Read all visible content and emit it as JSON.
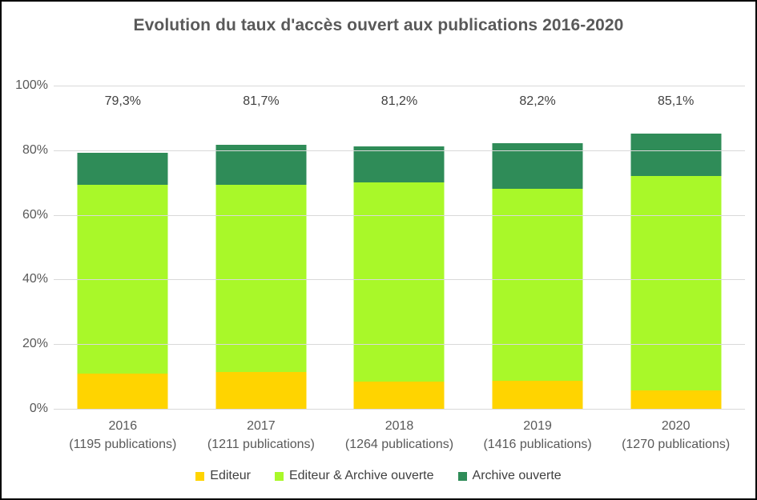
{
  "title": "Evolution du taux d'accès ouvert aux publications 2016-2020",
  "chart_data": {
    "type": "bar",
    "stacked": true,
    "title": "Evolution du taux d'accès ouvert aux publications 2016-2020",
    "categories": [
      "2016",
      "2017",
      "2018",
      "2019",
      "2020"
    ],
    "category_sublabels": [
      "(1195 publications)",
      "(1211 publications)",
      "(1264 publications)",
      "(1416 publications)",
      "(1270 publications)"
    ],
    "series": [
      {
        "name": "Editeur",
        "color": "#FFD400",
        "values": [
          11.0,
          11.5,
          8.4,
          8.7,
          5.8
        ]
      },
      {
        "name": "Editeur & Archive ouverte",
        "color": "#A9F829",
        "values": [
          58.2,
          57.9,
          61.6,
          59.4,
          66.3
        ]
      },
      {
        "name": "Archive ouverte",
        "color": "#2F8C58",
        "values": [
          10.1,
          12.3,
          11.2,
          14.1,
          13.0
        ]
      }
    ],
    "totals": [
      79.3,
      81.7,
      81.2,
      82.2,
      85.1
    ],
    "total_labels": [
      "79,3%",
      "81,7%",
      "81,2%",
      "82,2%",
      "85,1%"
    ],
    "y_ticks": [
      "100%",
      "80%",
      "60%",
      "40%",
      "20%",
      "0%"
    ],
    "ylim": [
      0,
      100
    ],
    "grid": true,
    "grid_color": "#D9D9D9",
    "legend_position": "bottom",
    "xlabel": "",
    "ylabel": ""
  }
}
